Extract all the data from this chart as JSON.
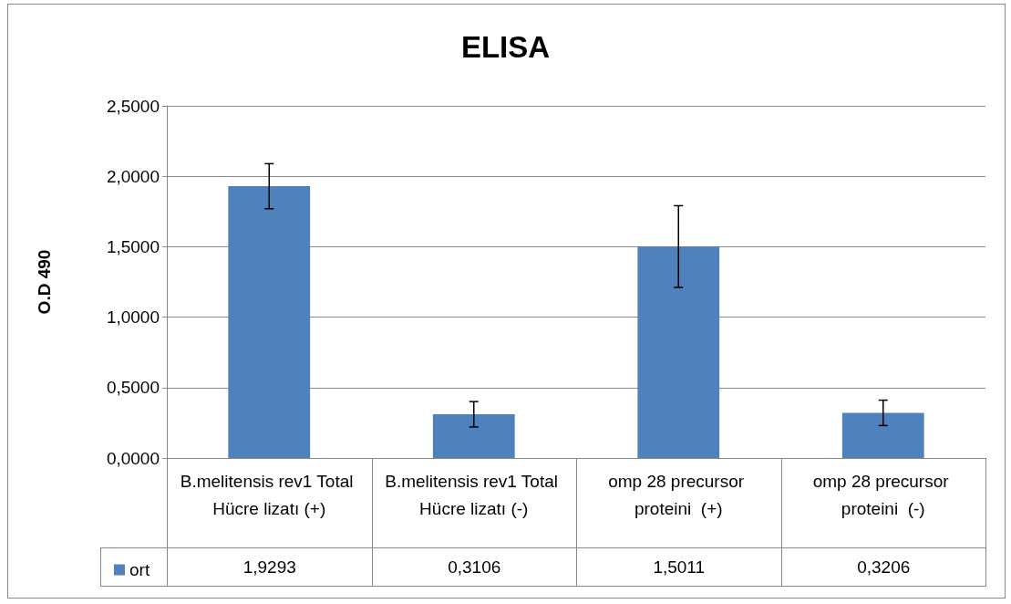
{
  "chart_data": {
    "type": "bar",
    "title": "ELISA",
    "ylabel": "O.D 490",
    "categories": [
      "B.melitensis rev1 Total Hücre lizatı (+)",
      "B.melitensis rev1 Total Hücre lizatı (-)",
      "omp 28 precursor proteini  (+)",
      "omp 28 precursor proteini  (-)"
    ],
    "series": [
      {
        "name": "ort",
        "color": "#4f81bd",
        "values": [
          1.9293,
          0.3106,
          1.5011,
          0.3206
        ],
        "errors": [
          0.16,
          0.09,
          0.29,
          0.09
        ],
        "value_labels": [
          "1,9293",
          "0,3106",
          "1,5011",
          "0,3206"
        ]
      }
    ],
    "ylim": [
      0,
      2.5
    ],
    "yticks": [
      {
        "value": 0,
        "label": "0,0000"
      },
      {
        "value": 0.5,
        "label": "0,5000"
      },
      {
        "value": 1,
        "label": "1,0000"
      },
      {
        "value": 1.5,
        "label": "1,5000"
      },
      {
        "value": 2,
        "label": "2,0000"
      },
      {
        "value": 2.5,
        "label": "2,5000"
      }
    ],
    "grid": "y",
    "legend": "bottom left"
  }
}
